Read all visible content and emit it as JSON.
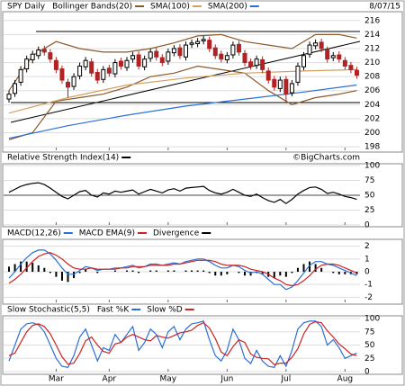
{
  "chart_data": [
    {
      "type": "candlestick",
      "title": "SPY Daily",
      "date": "8/07/15",
      "up_color": "#000000",
      "down_color": "#b22222",
      "ylim": [
        197.5,
        217
      ],
      "yticks": [
        198,
        200,
        202,
        204,
        206,
        208,
        210,
        212,
        214,
        216
      ],
      "grid": true,
      "open": [
        204.8,
        205.6,
        207.2,
        209.1,
        210.4,
        211.0,
        211.9,
        211.4,
        210.3,
        209.1,
        207.2,
        206.6,
        208.1,
        209.4,
        210.1,
        208.6,
        207.6,
        209.2,
        208.4,
        210.2,
        209.3,
        210.5,
        211.1,
        209.4,
        210.6,
        211.6,
        210.7,
        210.2,
        211.4,
        212.1,
        210.8,
        212.6,
        212.7,
        213.1,
        213.2,
        212.1,
        211.2,
        210.4,
        211.1,
        212.6,
        211.3,
        210.1,
        209.6,
        210.4,
        208.8,
        207.6,
        206.3,
        207.6,
        205.7,
        207.2,
        209.4,
        211.2,
        212.4,
        212.9,
        211.8,
        210.7,
        211.1,
        210.3,
        209.6,
        208.9
      ],
      "high": [
        206.0,
        207.5,
        209.5,
        211.0,
        211.7,
        212.3,
        212.4,
        211.9,
        210.8,
        209.6,
        207.7,
        208.5,
        210.0,
        210.8,
        210.6,
        209.1,
        209.5,
        209.7,
        210.5,
        210.7,
        210.8,
        211.5,
        211.6,
        211.0,
        212.0,
        212.1,
        211.2,
        212.0,
        212.5,
        212.6,
        213.0,
        213.3,
        213.5,
        213.8,
        213.7,
        212.6,
        211.7,
        211.5,
        213.0,
        213.1,
        211.8,
        210.6,
        211.0,
        210.9,
        209.3,
        208.1,
        208.0,
        208.1,
        207.5,
        210.0,
        211.5,
        213.0,
        213.3,
        213.4,
        212.3,
        211.5,
        211.6,
        210.8,
        210.1,
        209.4
      ],
      "low": [
        204.3,
        205.1,
        206.7,
        208.6,
        209.9,
        210.5,
        211.0,
        210.0,
        208.5,
        207.0,
        205.0,
        206.1,
        207.6,
        208.9,
        208.0,
        207.0,
        207.1,
        208.0,
        207.9,
        209.0,
        208.8,
        210.0,
        209.0,
        208.9,
        210.1,
        210.3,
        209.5,
        209.7,
        210.9,
        210.5,
        210.3,
        212.1,
        212.2,
        212.6,
        211.5,
        210.5,
        210.0,
        209.9,
        210.6,
        211.0,
        209.5,
        209.0,
        209.1,
        208.5,
        207.0,
        206.0,
        205.8,
        204.3,
        205.2,
        206.7,
        208.9,
        210.7,
        211.9,
        211.5,
        210.0,
        210.2,
        210.0,
        209.0,
        208.5,
        207.7
      ],
      "close": [
        205.5,
        207,
        209,
        210.5,
        211.2,
        211.8,
        211.5,
        210.5,
        209,
        207.5,
        206.5,
        208,
        209.5,
        210.3,
        208.5,
        207.5,
        209,
        208.5,
        210,
        209.5,
        210.3,
        211,
        209.5,
        210.5,
        211.5,
        210.8,
        210,
        211.5,
        212,
        211,
        212.5,
        212.8,
        213,
        213.3,
        212,
        211,
        210.5,
        211,
        212.5,
        211.5,
        210,
        209.5,
        210.5,
        209,
        207.5,
        206.5,
        207.5,
        205.5,
        207,
        209.5,
        211,
        212.5,
        212.8,
        212,
        210.5,
        211,
        210.5,
        209.5,
        209,
        208.2
      ],
      "overlays": [
        {
          "name": "Bollinger Bands(20)",
          "color": "#8b5a2b",
          "x": [
            0,
            4,
            8,
            12,
            16,
            20,
            24,
            28,
            32,
            36,
            40,
            44,
            48,
            52,
            56,
            59
          ],
          "upper": [
            206,
            211,
            213,
            212,
            211.5,
            211.5,
            212,
            212.8,
            213.8,
            214,
            213,
            212.5,
            212,
            214,
            214,
            213.5
          ],
          "lower": [
            199,
            200,
            204.5,
            205,
            205.5,
            206.5,
            208,
            208.5,
            209.5,
            209,
            208.5,
            206,
            204,
            205,
            205.5,
            206
          ]
        },
        {
          "name": "SMA(100)",
          "color": "#d2a060",
          "x": [
            0,
            10,
            20,
            30,
            40,
            50,
            59
          ],
          "values": [
            202.8,
            205,
            206.8,
            207.8,
            208.5,
            208.8,
            209
          ]
        },
        {
          "name": "SMA(200)",
          "color": "#2a6fd6",
          "x": [
            0,
            10,
            20,
            30,
            40,
            50,
            59
          ],
          "values": [
            199.2,
            201,
            202.5,
            203.8,
            204.8,
            205.8,
            206.8
          ]
        }
      ]
    },
    {
      "type": "line",
      "title": "Relative Strength Index(14)",
      "source": "©BigCharts.com",
      "ylim": [
        0,
        100
      ],
      "yticks": [
        0,
        25,
        50,
        75,
        100
      ],
      "grid": true,
      "series": [
        {
          "color": "#000000",
          "values": [
            55,
            60,
            65,
            68,
            70,
            71,
            68,
            62,
            55,
            48,
            44,
            50,
            56,
            58,
            50,
            47,
            54,
            52,
            57,
            55,
            57,
            59,
            52,
            56,
            60,
            57,
            54,
            59,
            61,
            57,
            62,
            63,
            64,
            65,
            58,
            54,
            52,
            55,
            60,
            55,
            50,
            48,
            52,
            46,
            41,
            38,
            43,
            36,
            43,
            52,
            58,
            63,
            64,
            60,
            53,
            55,
            52,
            48,
            46,
            43
          ]
        }
      ]
    },
    {
      "type": "line",
      "ylim": [
        -2.4,
        2.4
      ],
      "yticks": [
        -2,
        -1,
        0,
        1,
        2
      ],
      "grid": true,
      "series": [
        {
          "name": "MACD(12,26)",
          "color": "#2a6fd6",
          "values": [
            -0.5,
            0.0,
            0.6,
            1.1,
            1.5,
            1.7,
            1.7,
            1.4,
            0.9,
            0.3,
            -0.2,
            -0.2,
            0.1,
            0.4,
            0.3,
            0.1,
            0.2,
            0.2,
            0.3,
            0.3,
            0.4,
            0.5,
            0.3,
            0.4,
            0.6,
            0.6,
            0.5,
            0.6,
            0.7,
            0.6,
            0.8,
            0.9,
            1.0,
            1.0,
            0.8,
            0.5,
            0.3,
            0.3,
            0.5,
            0.4,
            0.1,
            -0.1,
            0.0,
            -0.2,
            -0.6,
            -1.0,
            -1.0,
            -1.4,
            -1.2,
            -0.7,
            -0.1,
            0.5,
            0.8,
            0.8,
            0.6,
            0.5,
            0.3,
            0.1,
            -0.1,
            -0.3
          ]
        },
        {
          "name": "MACD EMA(9)",
          "color": "#cc2222",
          "values": [
            -0.9,
            -0.6,
            -0.2,
            0.3,
            0.8,
            1.2,
            1.4,
            1.5,
            1.3,
            1.0,
            0.6,
            0.3,
            0.2,
            0.2,
            0.3,
            0.2,
            0.2,
            0.2,
            0.2,
            0.3,
            0.3,
            0.4,
            0.4,
            0.4,
            0.5,
            0.5,
            0.5,
            0.5,
            0.6,
            0.6,
            0.7,
            0.8,
            0.9,
            0.9,
            0.9,
            0.8,
            0.6,
            0.5,
            0.5,
            0.5,
            0.4,
            0.2,
            0.1,
            0.0,
            -0.2,
            -0.5,
            -0.7,
            -1.0,
            -1.1,
            -1.0,
            -0.7,
            -0.3,
            0.2,
            0.5,
            0.6,
            0.6,
            0.5,
            0.3,
            0.1,
            -0.1
          ]
        },
        {
          "name": "Divergence",
          "color": "#000000",
          "kind": "bar",
          "values": [
            0.4,
            0.6,
            0.8,
            0.8,
            0.7,
            0.5,
            0.3,
            -0.1,
            -0.4,
            -0.7,
            -0.8,
            -0.5,
            -0.1,
            0.2,
            0.0,
            -0.1,
            0.0,
            0.0,
            0.1,
            0.0,
            0.1,
            0.1,
            -0.1,
            0.0,
            0.1,
            0.1,
            0.0,
            0.1,
            0.1,
            0.0,
            0.1,
            0.1,
            0.1,
            0.1,
            -0.1,
            -0.3,
            -0.3,
            -0.2,
            0.0,
            -0.1,
            -0.3,
            -0.3,
            -0.1,
            -0.2,
            -0.4,
            -0.5,
            -0.3,
            -0.4,
            -0.1,
            0.3,
            0.6,
            0.8,
            0.6,
            0.3,
            0.0,
            -0.1,
            -0.2,
            -0.2,
            -0.2,
            -0.2
          ]
        }
      ]
    },
    {
      "type": "line",
      "title": "Slow Stochastic(5,5)",
      "ylim": [
        0,
        100
      ],
      "yticks": [
        0,
        25,
        50,
        75,
        100
      ],
      "grid": true,
      "xticks": [
        {
          "value": 8,
          "label": "Mar"
        },
        {
          "value": 17,
          "label": "Apr"
        },
        {
          "value": 27,
          "label": "May"
        },
        {
          "value": 37,
          "label": "Jun"
        },
        {
          "value": 47,
          "label": "Jul"
        },
        {
          "value": 57,
          "label": "Aug"
        }
      ],
      "series": [
        {
          "name": "Fast %K",
          "color": "#2a6fd6",
          "values": [
            20,
            50,
            80,
            90,
            92,
            88,
            75,
            50,
            25,
            10,
            8,
            30,
            65,
            80,
            50,
            20,
            45,
            40,
            70,
            55,
            70,
            85,
            40,
            55,
            80,
            70,
            45,
            75,
            85,
            60,
            80,
            90,
            92,
            95,
            60,
            30,
            20,
            40,
            80,
            60,
            25,
            15,
            40,
            20,
            10,
            8,
            30,
            10,
            40,
            80,
            92,
            95,
            95,
            85,
            50,
            60,
            45,
            25,
            30,
            35
          ]
        },
        {
          "name": "Slow %D",
          "color": "#cc2222",
          "values": [
            30,
            35,
            55,
            75,
            87,
            90,
            85,
            71,
            50,
            28,
            14,
            16,
            34,
            58,
            65,
            50,
            38,
            35,
            52,
            55,
            65,
            70,
            65,
            60,
            58,
            68,
            65,
            63,
            68,
            73,
            75,
            78,
            87,
            92,
            82,
            62,
            37,
            30,
            47,
            60,
            55,
            33,
            27,
            25,
            24,
            13,
            16,
            16,
            27,
            43,
            71,
            89,
            94,
            92,
            77,
            65,
            52,
            43,
            33,
            30
          ]
        }
      ]
    }
  ]
}
